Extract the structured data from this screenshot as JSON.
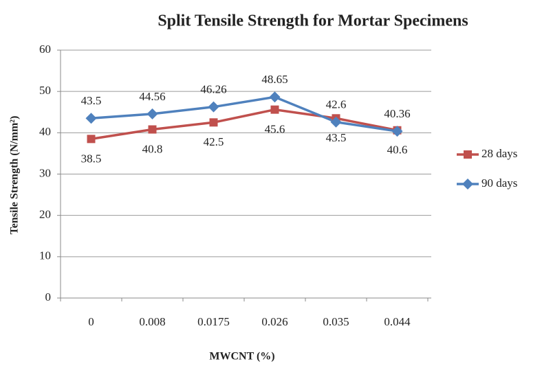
{
  "chart_data": {
    "type": "line",
    "title": "Split Tensile Strength for Mortar Specimens",
    "xlabel": "MWCNT (%)",
    "ylabel": "Tensile Strength (N/mm²)",
    "categories": [
      "0",
      "0.008",
      "0.0175",
      "0.026",
      "0.035",
      "0.044"
    ],
    "series": [
      {
        "name": "28 days",
        "color": "#c0504d",
        "marker": "square",
        "values": [
          38.5,
          40.8,
          42.5,
          45.6,
          43.5,
          40.6
        ]
      },
      {
        "name": "90 days",
        "color": "#4f81bd",
        "marker": "diamond",
        "values": [
          43.5,
          44.56,
          46.26,
          48.65,
          42.6,
          40.36
        ]
      }
    ],
    "ylim": [
      0,
      60
    ],
    "yticks": [
      0,
      10,
      20,
      30,
      40,
      50,
      60
    ],
    "grid": true,
    "legend": "right"
  }
}
